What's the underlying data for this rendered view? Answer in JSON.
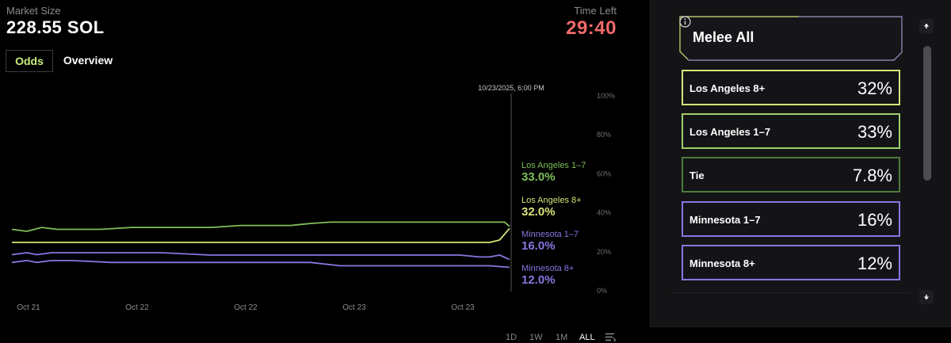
{
  "header": {
    "market_size_label": "Market Size",
    "market_size_value": "228.55 SOL",
    "time_left_label": "Time Left",
    "time_left_value": "29:40"
  },
  "tabs": [
    {
      "label": "Odds",
      "active": true
    },
    {
      "label": "Overview",
      "active": false
    }
  ],
  "chart_data": {
    "type": "line",
    "hover_timestamp": "10/23/2025, 6:00 PM",
    "ylim": [
      0,
      100
    ],
    "y_ticks": [
      "100%",
      "80%",
      "60%",
      "40%",
      "20%",
      "0%"
    ],
    "x_ticks": [
      "Oct 21",
      "Oct 22",
      "Oct 22",
      "Oct 23",
      "Oct 23"
    ],
    "grid": false,
    "series": [
      {
        "name": "Los Angeles 1–7",
        "label_value": "33.0%",
        "color": "#7fbf5a",
        "x": [
          0,
          3,
          6,
          9,
          12,
          18,
          24,
          28,
          34,
          40,
          46,
          52,
          56,
          60,
          64,
          68,
          72,
          76,
          80,
          84,
          88,
          92,
          96,
          99,
          100
        ],
        "values": [
          31.5,
          30.5,
          32.5,
          31.5,
          31.5,
          31.5,
          32.5,
          32.5,
          32.5,
          32.5,
          33.5,
          33.5,
          33.5,
          34.5,
          35.2,
          35.2,
          35.2,
          35.2,
          35.2,
          35.2,
          35.2,
          35.2,
          35.2,
          35.2,
          33.0
        ]
      },
      {
        "name": "Los Angeles 8+",
        "label_value": "32.0%",
        "color": "#d8e27a",
        "x": [
          0,
          4,
          10,
          20,
          30,
          40,
          50,
          60,
          70,
          80,
          90,
          96,
          98,
          100
        ],
        "values": [
          24.8,
          24.8,
          24.8,
          24.8,
          24.8,
          24.8,
          24.8,
          24.8,
          24.8,
          24.8,
          24.8,
          24.8,
          26.0,
          32.0
        ]
      },
      {
        "name": "Minnesota 1–7",
        "label_value": "16.0%",
        "color": "#8a75e0",
        "x": [
          0,
          3,
          5,
          8,
          12,
          20,
          30,
          40,
          50,
          60,
          70,
          80,
          90,
          94,
          96,
          98,
          100
        ],
        "values": [
          18.5,
          19.5,
          18.5,
          19.5,
          19.5,
          19.5,
          19.5,
          18.3,
          18.3,
          18.3,
          18.3,
          18.3,
          18.3,
          17.3,
          17.3,
          18.3,
          16.0
        ]
      },
      {
        "name": "Minnesota 8+",
        "label_value": "12.0%",
        "color": "#8a75e0",
        "x": [
          0,
          3,
          5,
          8,
          12,
          20,
          30,
          40,
          50,
          60,
          66,
          70,
          80,
          90,
          96,
          100
        ],
        "values": [
          14.5,
          15.5,
          14.5,
          15.5,
          15.5,
          14.5,
          14.5,
          14.5,
          14.5,
          14.5,
          12.8,
          12.8,
          12.8,
          12.8,
          12.8,
          12.0
        ]
      }
    ]
  },
  "range_buttons": [
    {
      "label": "1D",
      "active": false
    },
    {
      "label": "1W",
      "active": false
    },
    {
      "label": "1M",
      "active": false
    },
    {
      "label": "ALL",
      "active": true
    }
  ],
  "panel": {
    "title": "Melee All",
    "outcomes": [
      {
        "name": "Los Angeles 8+",
        "pct": "32%",
        "border": "#d8e27a"
      },
      {
        "name": "Los Angeles 1–7",
        "pct": "33%",
        "border": "#9ed06b"
      },
      {
        "name": "Tie",
        "pct": "7.8%",
        "border": "#4c7a3c"
      },
      {
        "name": "Minnesota 1–7",
        "pct": "16%",
        "border": "#8a75e0"
      },
      {
        "name": "Minnesota 8+",
        "pct": "12%",
        "border": "#8a75e0"
      }
    ]
  }
}
